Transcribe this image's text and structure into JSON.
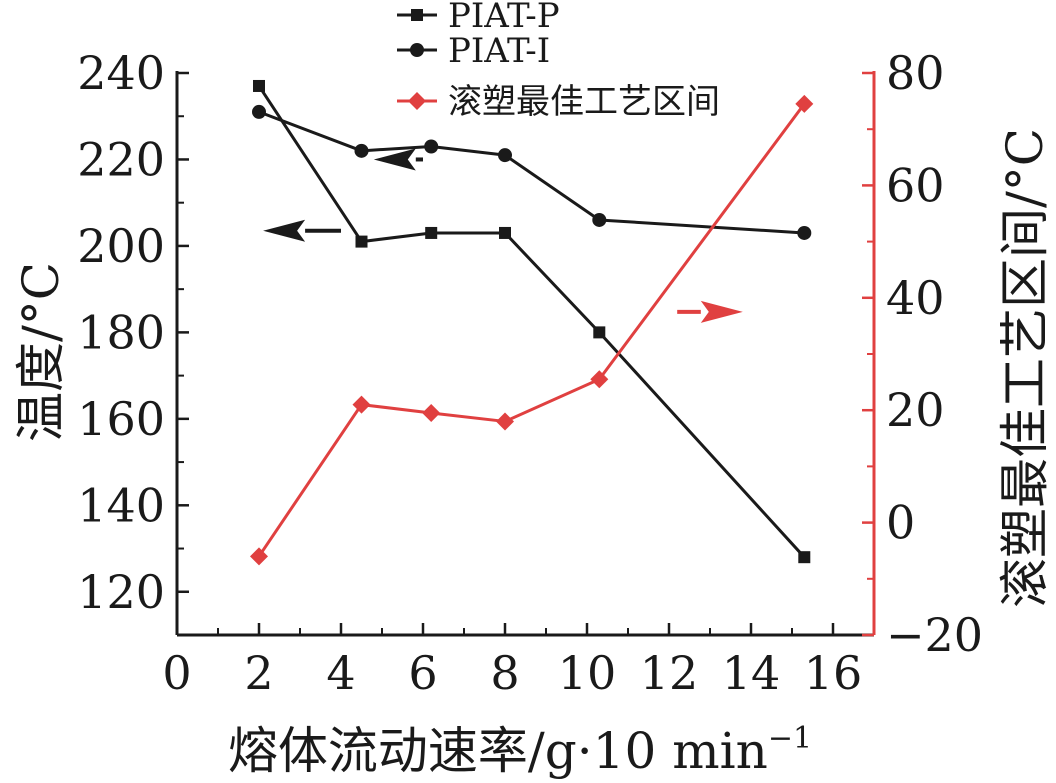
{
  "chart_data": {
    "type": "line",
    "title": "",
    "xlabel": "熔体流动速率/g·10 min",
    "xlabel_sup": "−1",
    "ylabel_left": "温度/°C",
    "ylabel_right": "滚塑最佳工艺区间/°C",
    "xlim": [
      0,
      17
    ],
    "xticks": [
      0,
      2,
      4,
      6,
      8,
      10,
      12,
      14,
      16
    ],
    "ylim_left": [
      110,
      240
    ],
    "yticks_left": [
      120,
      140,
      160,
      180,
      200,
      220,
      240
    ],
    "ylim_right": [
      -20,
      80
    ],
    "yticks_right": [
      -20,
      0,
      20,
      40,
      60,
      80
    ],
    "grid": false,
    "legend_position": "top-center",
    "series": [
      {
        "name": "PIAT-P",
        "axis": "left",
        "marker": "square",
        "color": "#1a1a1a",
        "x": [
          2,
          4.5,
          6.2,
          8,
          10.3,
          15.3
        ],
        "y": [
          237,
          201,
          203,
          203,
          180,
          128
        ]
      },
      {
        "name": "PIAT-I",
        "axis": "left",
        "marker": "circle",
        "color": "#1a1a1a",
        "x": [
          2,
          4.5,
          6.2,
          8,
          10.3,
          15.3
        ],
        "y": [
          231,
          222,
          223,
          221,
          206,
          203
        ]
      },
      {
        "name": "滚塑最佳工艺区间",
        "axis": "right",
        "marker": "diamond",
        "color": "#e04040",
        "x": [
          2,
          4.5,
          6.2,
          8,
          10.3,
          15.3
        ],
        "y": [
          -6,
          21,
          19.5,
          18,
          25.5,
          74.5
        ]
      }
    ],
    "annotations": [
      {
        "type": "arrow",
        "direction": "left",
        "color": "#1a1a1a",
        "target_axis": "left",
        "x": [
          6,
          4.8
        ],
        "y": 220
      },
      {
        "type": "arrow",
        "direction": "left",
        "color": "#1a1a1a",
        "target_axis": "left",
        "x": [
          4,
          2.1
        ],
        "y": 203.5
      },
      {
        "type": "arrow",
        "direction": "right",
        "color": "#e04040",
        "target_axis": "right",
        "x": [
          12.2,
          13.8
        ],
        "y": 37.5
      }
    ]
  },
  "colors": {
    "black": "#1a1a1a",
    "red": "#e04040"
  }
}
